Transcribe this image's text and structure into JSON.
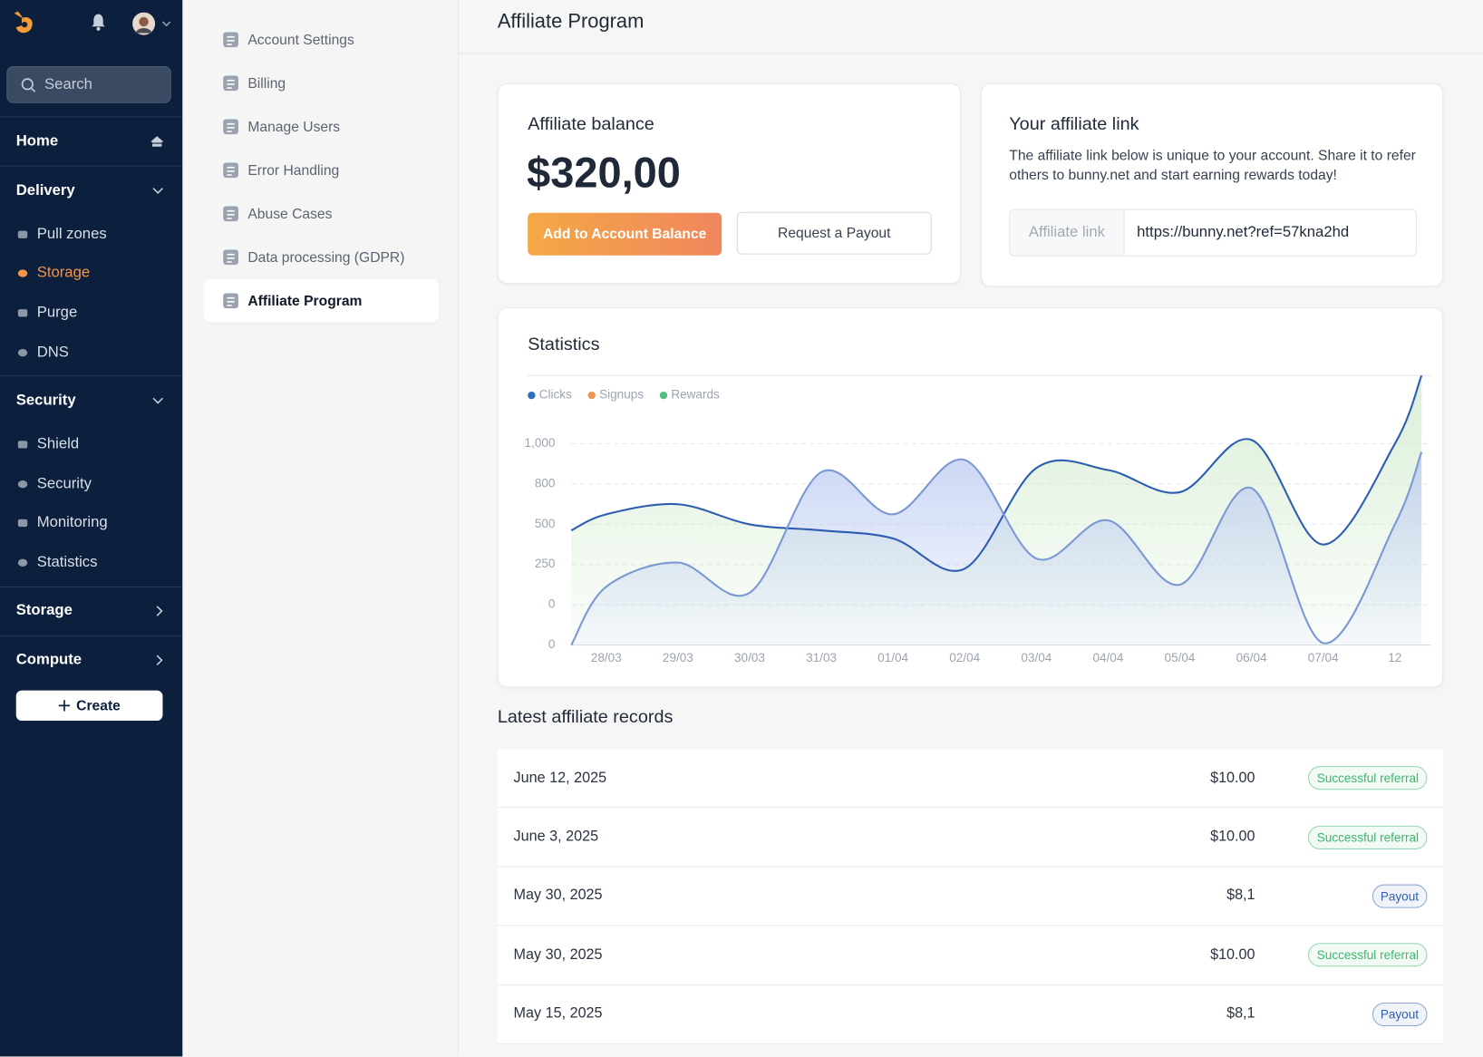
{
  "sidebar": {
    "search_placeholder": "Search",
    "sections": [
      {
        "title": "Home"
      },
      {
        "title": "Delivery",
        "items": [
          "Pull zones",
          "Storage",
          "Purge",
          "DNS"
        ]
      },
      {
        "title": "Security",
        "items": [
          "Shield",
          "Security",
          "Monitoring",
          "Statistics"
        ]
      },
      {
        "title": "Storage"
      },
      {
        "title": "Compute"
      }
    ],
    "create_button": "Create"
  },
  "settings_menu": {
    "items": [
      "Account Settings",
      "Billing",
      "Manage Users",
      "Error Handling",
      "Abuse Cases",
      "Data processing (GDPR)",
      "Affiliate Program"
    ]
  },
  "header": {
    "title": "Affiliate Program"
  },
  "balance": {
    "title": "Affiliate balance",
    "amount": "$320,00",
    "primary_button": "Add to Account Balance",
    "secondary_button": "Request a Payout"
  },
  "link_card": {
    "title": "Your affiliate link",
    "description": "The affiliate link below is unique to your account. Share it to refer others to bunny.net and start earning rewards today!",
    "field_label": "Affiliate link",
    "url": "https://bunny.net?ref=57kna2hd"
  },
  "chart_data": {
    "type": "line",
    "title": "Statistics",
    "categories": [
      null,
      "28/03",
      "29/03",
      "30/03",
      "31/03",
      "01/04",
      "02/04",
      "03/04",
      "04/04",
      "05/04",
      "06/04",
      "07/04",
      "12",
      null
    ],
    "series": [
      {
        "name": "Clicks",
        "color": "#2f6fbf",
        "line_color": "#2c5eb0",
        "fill_color": "#cfeacb",
        "values": [
          2.85,
          3.25,
          3.5,
          3.0,
          2.85,
          2.65,
          1.9,
          4.4,
          4.35,
          3.8,
          5.1,
          2.5,
          5.0,
          6.7
        ]
      },
      {
        "name": "Signups",
        "color": "#f0954f",
        "line_color": "#7b98d4",
        "fill_color": "#b9c9f2",
        "values": [
          0,
          1.45,
          2.05,
          1.3,
          4.3,
          3.25,
          4.6,
          2.15,
          3.1,
          1.5,
          3.9,
          0.05,
          3.0,
          4.8
        ]
      },
      {
        "name": "Rewards",
        "color": "#52c07e"
      }
    ],
    "ylim": [
      0,
      6.7
    ],
    "y_tick_labels": [
      "1,000",
      "800",
      "500",
      "250",
      "0",
      "0"
    ],
    "grid": true
  },
  "records": {
    "title": "Latest affiliate records",
    "rows": [
      {
        "date": "June 12, 2025",
        "amount": "$10.00",
        "status": "Successful referral",
        "badge_color": "#3fb56f"
      },
      {
        "date": "June 3, 2025",
        "amount": "$10.00",
        "status": "Successful referral",
        "badge_color": "#3fb56f"
      },
      {
        "date": "May 30, 2025",
        "amount": "$8,1",
        "status": "Payout",
        "badge_color": "#2f5fb0"
      },
      {
        "date": "May 30, 2025",
        "amount": "$10.00",
        "status": "Successful referral",
        "badge_color": "#3fb56f"
      },
      {
        "date": "May 15, 2025",
        "amount": "$8,1",
        "status": "Payout",
        "badge_color": "#2f5fb0"
      }
    ]
  }
}
